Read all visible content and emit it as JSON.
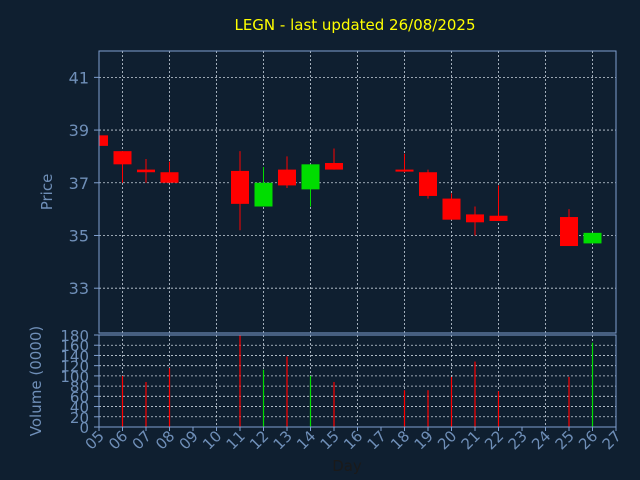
{
  "chart_data": [
    {
      "type": "candlestick",
      "title": "LEGN - last updated 26/08/2025",
      "ylabel": "Price",
      "ylim": [
        31.3,
        42
      ],
      "yticks": [
        33,
        35,
        37,
        39,
        41
      ],
      "grid": true,
      "colors": {
        "up": "#00dd00",
        "down": "#ff0000",
        "title": "#ffff00",
        "axis_text": "#6f8fb8",
        "background": "#0f1f30",
        "frame": "#7f9fcf",
        "grid": "#c8d2dc"
      },
      "candles": [
        {
          "day": 5,
          "open": 38.8,
          "close": 38.4,
          "high": 38.8,
          "low": 38.4
        },
        {
          "day": 6,
          "open": 38.2,
          "close": 37.7,
          "high": 38.2,
          "low": 37.0
        },
        {
          "day": 7,
          "open": 37.5,
          "close": 37.4,
          "high": 37.9,
          "low": 37.0
        },
        {
          "day": 8,
          "open": 37.4,
          "close": 37.0,
          "high": 37.8,
          "low": 37.0
        },
        {
          "day": 11,
          "open": 37.45,
          "close": 36.2,
          "high": 38.2,
          "low": 35.2
        },
        {
          "day": 12,
          "open": 36.1,
          "close": 37.0,
          "high": 37.6,
          "low": 36.1
        },
        {
          "day": 13,
          "open": 37.5,
          "close": 36.9,
          "high": 38.0,
          "low": 36.8
        },
        {
          "day": 14,
          "open": 36.75,
          "close": 37.7,
          "high": 37.7,
          "low": 36.1
        },
        {
          "day": 15,
          "open": 37.75,
          "close": 37.5,
          "high": 38.3,
          "low": 37.5
        },
        {
          "day": 18,
          "open": 37.5,
          "close": 37.45,
          "high": 38.1,
          "low": 37.4
        },
        {
          "day": 19,
          "open": 37.4,
          "close": 36.5,
          "high": 37.5,
          "low": 36.4
        },
        {
          "day": 20,
          "open": 36.4,
          "close": 35.6,
          "high": 36.6,
          "low": 35.6
        },
        {
          "day": 21,
          "open": 35.8,
          "close": 35.5,
          "high": 36.1,
          "low": 35.0
        },
        {
          "day": 22,
          "open": 35.75,
          "close": 35.55,
          "high": 36.9,
          "low": 35.55
        },
        {
          "day": 25,
          "open": 35.7,
          "close": 34.6,
          "high": 36.0,
          "low": 34.6
        },
        {
          "day": 26,
          "open": 34.7,
          "close": 35.1,
          "high": 35.1,
          "low": 34.7
        }
      ]
    },
    {
      "type": "bar",
      "xlabel": "Day",
      "ylabel": "Volume (0000)",
      "ylim": [
        0,
        180
      ],
      "yticks": [
        0,
        20,
        40,
        60,
        80,
        100,
        120,
        140,
        160,
        180
      ],
      "xticks": [
        "05",
        "06",
        "07",
        "08",
        "09",
        "10",
        "11",
        "12",
        "13",
        "14",
        "15",
        "16",
        "17",
        "18",
        "19",
        "20",
        "21",
        "22",
        "23",
        "24",
        "25",
        "26",
        "27"
      ],
      "grid": true,
      "bars": [
        {
          "day": 6,
          "value": 100,
          "dir": "down"
        },
        {
          "day": 7,
          "value": 88,
          "dir": "down"
        },
        {
          "day": 8,
          "value": 115,
          "dir": "down"
        },
        {
          "day": 11,
          "value": 180,
          "dir": "down"
        },
        {
          "day": 12,
          "value": 112,
          "dir": "up"
        },
        {
          "day": 13,
          "value": 138,
          "dir": "down"
        },
        {
          "day": 14,
          "value": 100,
          "dir": "up"
        },
        {
          "day": 15,
          "value": 88,
          "dir": "down"
        },
        {
          "day": 18,
          "value": 72,
          "dir": "down"
        },
        {
          "day": 19,
          "value": 72,
          "dir": "down"
        },
        {
          "day": 20,
          "value": 98,
          "dir": "down"
        },
        {
          "day": 21,
          "value": 128,
          "dir": "down"
        },
        {
          "day": 22,
          "value": 70,
          "dir": "down"
        },
        {
          "day": 25,
          "value": 98,
          "dir": "down"
        },
        {
          "day": 26,
          "value": 165,
          "dir": "up"
        }
      ]
    }
  ]
}
